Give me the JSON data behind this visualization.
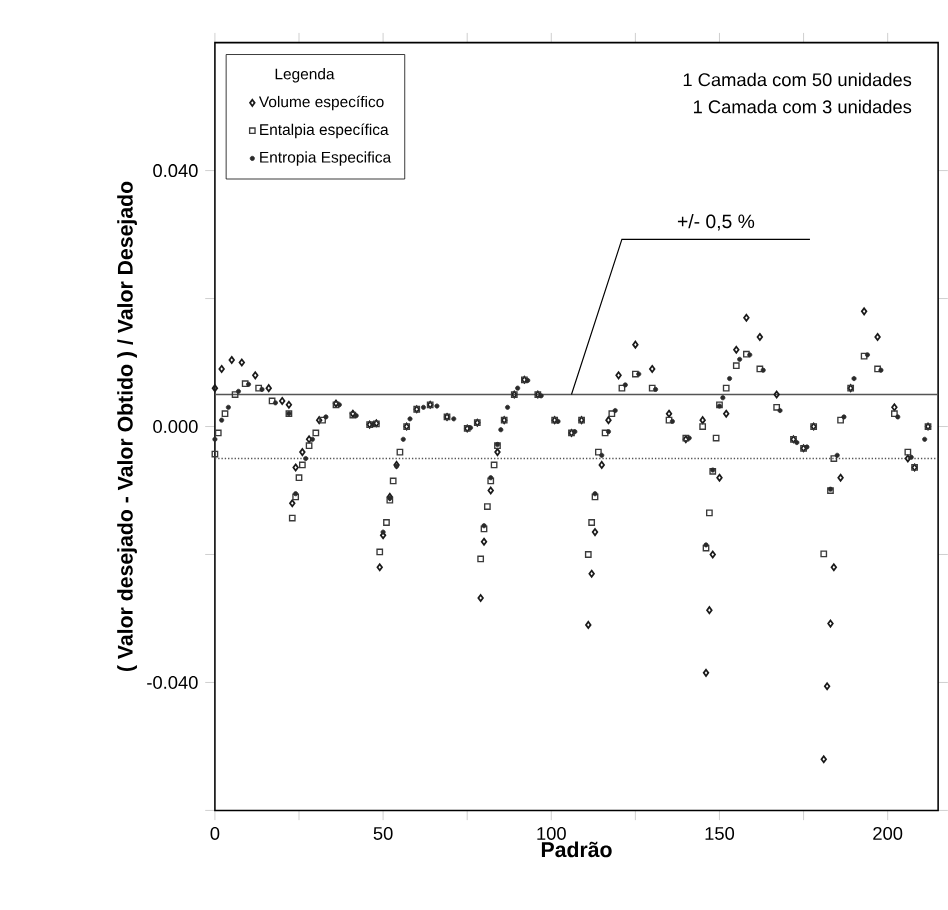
{
  "chart_data": {
    "type": "scatter",
    "xlabel": "Padrão",
    "ylabel": "( Valor desejado - Valor Obtido ) / Valor Desejado",
    "legend_title": "Legenda",
    "legend": "top left",
    "xlim": [
      0,
      215
    ],
    "ylim": [
      -0.06,
      0.06
    ],
    "xticks": [
      0,
      {
        "value": 25,
        "label": null
      },
      50,
      {
        "value": 75,
        "label": null
      },
      100,
      {
        "value": 125,
        "label": null
      },
      150,
      {
        "value": 175,
        "label": null
      },
      200
    ],
    "yticks": [
      {
        "value": -0.06,
        "label": null
      },
      {
        "value": -0.04,
        "label": "-0.040"
      },
      {
        "value": -0.02,
        "label": null
      },
      {
        "value": 0,
        "label": "0.000"
      },
      {
        "value": 0.02,
        "label": null
      },
      {
        "value": 0.04,
        "label": "0.040"
      }
    ],
    "ref_lines": [
      {
        "axis": "y",
        "value": 0.005,
        "line_style": "solid",
        "color": "#555555"
      },
      {
        "axis": "y",
        "value": -0.005,
        "line_style": "dotted",
        "color": "#555555"
      }
    ],
    "annotations": [
      "1 Camada com 50 unidades",
      "1 Camada com 3 unidades",
      {
        "text": "+/- 0,5 %",
        "x": 106,
        "y": 0.005
      }
    ],
    "series": [
      {
        "name": "Volume específico",
        "color": "#1a1a1a",
        "marker": "diamond",
        "x": [
          0,
          2,
          5,
          8,
          12,
          16,
          20,
          22,
          23,
          24,
          26,
          28,
          31,
          36,
          41,
          46,
          48,
          49,
          50,
          52,
          54,
          57,
          60,
          64,
          69,
          75,
          78,
          79,
          80,
          82,
          84,
          86,
          89,
          92,
          96,
          101,
          106,
          109,
          111,
          112,
          113,
          115,
          117,
          120,
          125,
          130,
          135,
          140,
          145,
          146,
          147,
          148,
          150,
          152,
          155,
          158,
          162,
          167,
          172,
          175,
          178,
          181,
          182,
          183,
          184,
          186,
          189,
          193,
          197,
          202,
          206,
          208,
          212
        ],
        "values": [
          0.006,
          0.009,
          0.0104,
          0.01,
          0.008,
          0.006,
          0.004,
          0.0034,
          -0.012,
          -0.0064,
          -0.004,
          -0.002,
          0.001,
          0.0036,
          0.002,
          0.0003,
          0.0005,
          -0.022,
          -0.017,
          -0.011,
          -0.006,
          0,
          0.0027,
          0.0034,
          0.0015,
          -0.0003,
          0.0006,
          -0.0268,
          -0.018,
          -0.01,
          -0.004,
          0.001,
          0.005,
          0.0073,
          0.005,
          0.001,
          -0.001,
          0.001,
          -0.031,
          -0.023,
          -0.0165,
          -0.006,
          0.001,
          0.008,
          0.0128,
          0.009,
          0.002,
          -0.002,
          0.001,
          -0.0385,
          -0.0287,
          -0.02,
          -0.008,
          0.002,
          0.012,
          0.017,
          0.014,
          0.005,
          -0.002,
          -0.0034,
          0.0,
          -0.052,
          -0.0406,
          -0.0308,
          -0.022,
          -0.008,
          0.006,
          0.018,
          0.014,
          0.003,
          -0.005,
          -0.0064,
          0.0
        ]
      },
      {
        "name": "Entalpia específica",
        "color": "#3a3a3a",
        "marker": "square",
        "x": [
          0,
          1,
          3,
          6,
          9,
          13,
          17,
          22,
          23,
          24,
          25,
          26,
          28,
          30,
          32,
          36,
          41,
          46,
          48,
          49,
          51,
          52,
          53,
          55,
          57,
          60,
          64,
          69,
          75,
          78,
          79,
          80,
          81,
          82,
          83,
          84,
          86,
          89,
          92,
          96,
          101,
          106,
          109,
          111,
          112,
          113,
          114,
          116,
          118,
          121,
          125,
          130,
          135,
          140,
          145,
          146,
          147,
          148,
          149,
          150,
          152,
          155,
          158,
          162,
          167,
          172,
          175,
          178,
          181,
          183,
          184,
          186,
          189,
          193,
          197,
          202,
          206,
          208,
          212
        ],
        "values": [
          -0.0043,
          -0.001,
          0.002,
          0.005,
          0.0067,
          0.006,
          0.004,
          0.002,
          -0.0143,
          -0.011,
          -0.008,
          -0.006,
          -0.003,
          -0.001,
          0.001,
          0.0034,
          0.0018,
          0.0003,
          0.0004,
          -0.0196,
          -0.015,
          -0.0115,
          -0.0085,
          -0.004,
          0,
          0.0027,
          0.0034,
          0.0015,
          -0.0003,
          0.0006,
          -0.0207,
          -0.016,
          -0.0125,
          -0.0085,
          -0.006,
          -0.003,
          0.001,
          0.005,
          0.0073,
          0.005,
          0.001,
          -0.001,
          0.001,
          -0.02,
          -0.015,
          -0.011,
          -0.004,
          -0.001,
          0.002,
          0.006,
          0.0082,
          0.006,
          0.001,
          -0.0018,
          0.0,
          -0.019,
          -0.0135,
          -0.007,
          -0.0018,
          0.0034,
          0.006,
          0.0095,
          0.0113,
          0.009,
          0.003,
          -0.002,
          -0.0034,
          0.0,
          -0.0199,
          -0.01,
          -0.005,
          0.001,
          0.006,
          0.011,
          0.009,
          0.002,
          -0.004,
          -0.0064,
          0.0
        ]
      },
      {
        "name": "Entropia Especifica",
        "color": "#2a2a2a",
        "marker": "circle",
        "x": [
          0,
          2,
          4,
          7,
          10,
          14,
          18,
          22,
          24,
          27,
          29,
          33,
          37,
          42,
          47,
          50,
          52,
          54,
          56,
          58,
          62,
          66,
          71,
          76,
          80,
          82,
          84,
          85,
          87,
          90,
          93,
          97,
          102,
          107,
          113,
          115,
          117,
          119,
          122,
          126,
          131,
          136,
          141,
          146,
          148,
          150,
          151,
          153,
          156,
          159,
          163,
          168,
          173,
          176,
          183,
          185,
          187,
          190,
          194,
          198,
          203,
          207,
          211
        ],
        "values": [
          -0.002,
          0.001,
          0.003,
          0.0055,
          0.0066,
          0.0058,
          0.0037,
          0.002,
          -0.0105,
          -0.005,
          -0.002,
          0.0015,
          0.0034,
          0.0017,
          0.0003,
          -0.0165,
          -0.0112,
          -0.0062,
          -0.002,
          0.0012,
          0.003,
          0.0032,
          0.0012,
          -0.0002,
          -0.0155,
          -0.008,
          -0.0028,
          -0.0005,
          0.003,
          0.006,
          0.0072,
          0.0048,
          0.0008,
          -0.0008,
          -0.0105,
          -0.0045,
          -0.0008,
          0.0025,
          0.0065,
          0.0082,
          0.0058,
          0.0008,
          -0.0018,
          -0.0185,
          -0.0068,
          0.0032,
          0.0045,
          0.0075,
          0.0105,
          0.0112,
          0.0088,
          0.0025,
          -0.0025,
          -0.0032,
          -0.0098,
          -0.0045,
          0.0015,
          0.0075,
          0.0112,
          0.0088,
          0.0015,
          -0.0048,
          -0.002
        ]
      }
    ]
  }
}
